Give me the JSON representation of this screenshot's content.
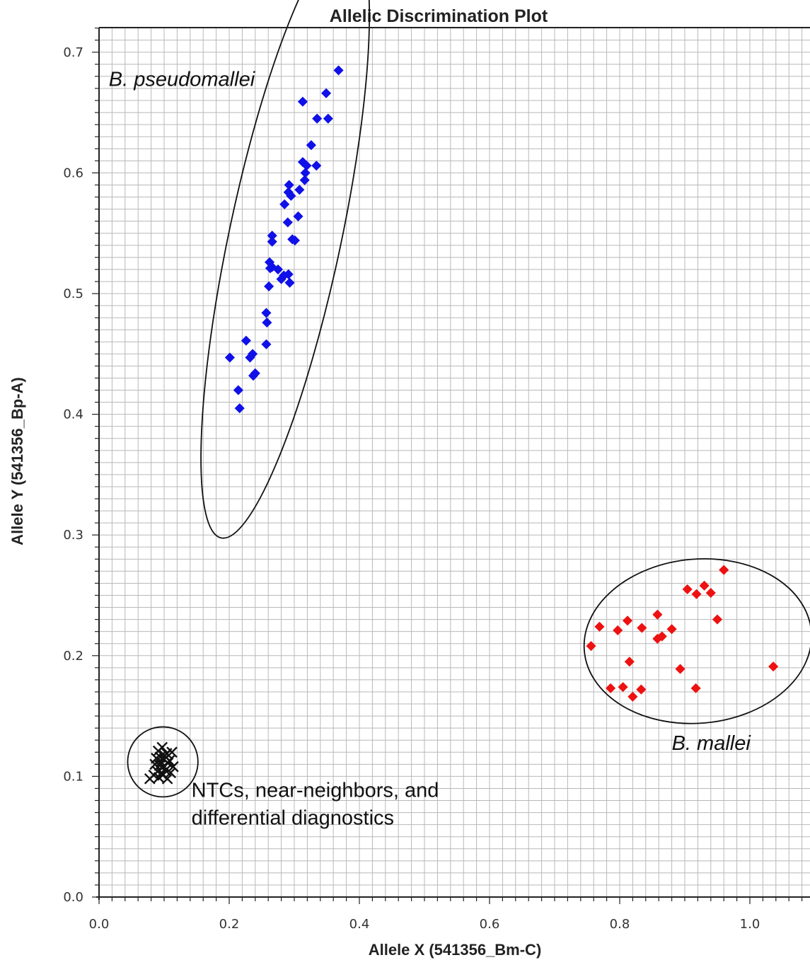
{
  "chart_data": {
    "type": "scatter",
    "title": "Allelic Discrimination Plot",
    "xlabel": "Allele X (541356_Bm-C)",
    "ylabel": "Allele Y (541356_Bp-A)",
    "xlim": [
      0.0,
      1.09
    ],
    "ylim": [
      0.0,
      0.72
    ],
    "x_ticks": [
      "0.0",
      "0.2",
      "0.4",
      "0.6",
      "0.8",
      "1.0"
    ],
    "y_ticks": [
      "0.0",
      "0.1",
      "0.2",
      "0.3",
      "0.4",
      "0.5",
      "0.6",
      "0.7"
    ],
    "grid": true,
    "colors": {
      "b_pseudomallei": "#1010e8",
      "b_mallei": "#ee1111",
      "ntc": "#111111",
      "grid": "#b8b8b8",
      "axis": "#222222"
    },
    "series": [
      {
        "name": "B. pseudomallei",
        "marker": "diamond",
        "color": "#1010e8",
        "points": [
          [
            0.368,
            0.685
          ],
          [
            0.313,
            0.659
          ],
          [
            0.349,
            0.666
          ],
          [
            0.335,
            0.645
          ],
          [
            0.352,
            0.645
          ],
          [
            0.326,
            0.623
          ],
          [
            0.313,
            0.609
          ],
          [
            0.319,
            0.606
          ],
          [
            0.334,
            0.606
          ],
          [
            0.317,
            0.6
          ],
          [
            0.316,
            0.594
          ],
          [
            0.292,
            0.59
          ],
          [
            0.291,
            0.584
          ],
          [
            0.295,
            0.581
          ],
          [
            0.308,
            0.586
          ],
          [
            0.285,
            0.574
          ],
          [
            0.306,
            0.564
          ],
          [
            0.29,
            0.559
          ],
          [
            0.266,
            0.548
          ],
          [
            0.266,
            0.543
          ],
          [
            0.297,
            0.545
          ],
          [
            0.301,
            0.544
          ],
          [
            0.262,
            0.526
          ],
          [
            0.266,
            0.522
          ],
          [
            0.263,
            0.521
          ],
          [
            0.275,
            0.52
          ],
          [
            0.284,
            0.515
          ],
          [
            0.291,
            0.516
          ],
          [
            0.28,
            0.512
          ],
          [
            0.293,
            0.509
          ],
          [
            0.261,
            0.506
          ],
          [
            0.257,
            0.484
          ],
          [
            0.258,
            0.476
          ],
          [
            0.257,
            0.458
          ],
          [
            0.226,
            0.461
          ],
          [
            0.201,
            0.447
          ],
          [
            0.232,
            0.447
          ],
          [
            0.236,
            0.45
          ],
          [
            0.237,
            0.432
          ],
          [
            0.24,
            0.434
          ],
          [
            0.214,
            0.42
          ],
          [
            0.216,
            0.405
          ]
        ]
      },
      {
        "name": "B. mallei",
        "marker": "diamond",
        "color": "#ee1111",
        "points": [
          [
            0.96,
            0.271
          ],
          [
            0.904,
            0.255
          ],
          [
            0.93,
            0.258
          ],
          [
            0.918,
            0.251
          ],
          [
            0.94,
            0.252
          ],
          [
            0.95,
            0.23
          ],
          [
            0.858,
            0.234
          ],
          [
            0.812,
            0.229
          ],
          [
            0.769,
            0.224
          ],
          [
            0.797,
            0.221
          ],
          [
            0.834,
            0.223
          ],
          [
            0.88,
            0.222
          ],
          [
            0.858,
            0.214
          ],
          [
            0.865,
            0.216
          ],
          [
            0.756,
            0.208
          ],
          [
            0.815,
            0.195
          ],
          [
            0.893,
            0.189
          ],
          [
            1.036,
            0.191
          ],
          [
            0.786,
            0.173
          ],
          [
            0.805,
            0.174
          ],
          [
            0.833,
            0.172
          ],
          [
            0.917,
            0.173
          ],
          [
            0.82,
            0.166
          ]
        ]
      },
      {
        "name": "NTCs, near-neighbors, and differential diagnostics",
        "marker": "x",
        "color": "#111111",
        "points": [
          [
            0.091,
            0.121
          ],
          [
            0.097,
            0.124
          ],
          [
            0.104,
            0.119
          ],
          [
            0.112,
            0.12
          ],
          [
            0.088,
            0.115
          ],
          [
            0.094,
            0.116
          ],
          [
            0.1,
            0.114
          ],
          [
            0.108,
            0.113
          ],
          [
            0.086,
            0.11
          ],
          [
            0.093,
            0.109
          ],
          [
            0.099,
            0.108
          ],
          [
            0.106,
            0.111
          ],
          [
            0.114,
            0.108
          ],
          [
            0.09,
            0.104
          ],
          [
            0.096,
            0.103
          ],
          [
            0.102,
            0.105
          ],
          [
            0.11,
            0.103
          ],
          [
            0.084,
            0.101
          ],
          [
            0.092,
            0.099
          ],
          [
            0.098,
            0.101
          ],
          [
            0.105,
            0.098
          ],
          [
            0.078,
            0.098
          ],
          [
            0.095,
            0.112
          ],
          [
            0.101,
            0.117
          ]
        ]
      }
    ],
    "annotations": [
      {
        "id": "bp",
        "text": "B. pseudomallei",
        "italic": true,
        "x": 0.015,
        "y": 0.672
      },
      {
        "id": "bm",
        "text": "B. mallei",
        "italic": true,
        "x": 0.88,
        "y": 0.122
      },
      {
        "id": "ntc1",
        "text": "NTCs, near-neighbors, and",
        "italic": false,
        "x": 0.142,
        "y": 0.083
      },
      {
        "id": "ntc2",
        "text": "differential diagnostics",
        "italic": false,
        "x": 0.142,
        "y": 0.06
      }
    ],
    "cluster_ellipses": [
      {
        "cx": 0.286,
        "cy": 0.547,
        "rx": 0.255,
        "ry": 0.086,
        "rot_deg": -78
      },
      {
        "cx": 0.92,
        "cy": 0.212,
        "rx": 0.175,
        "ry": 0.068,
        "rot_deg": -5
      },
      {
        "cx": 0.098,
        "cy": 0.112,
        "rx": 0.054,
        "ry": 0.029,
        "rot_deg": 0
      }
    ]
  }
}
